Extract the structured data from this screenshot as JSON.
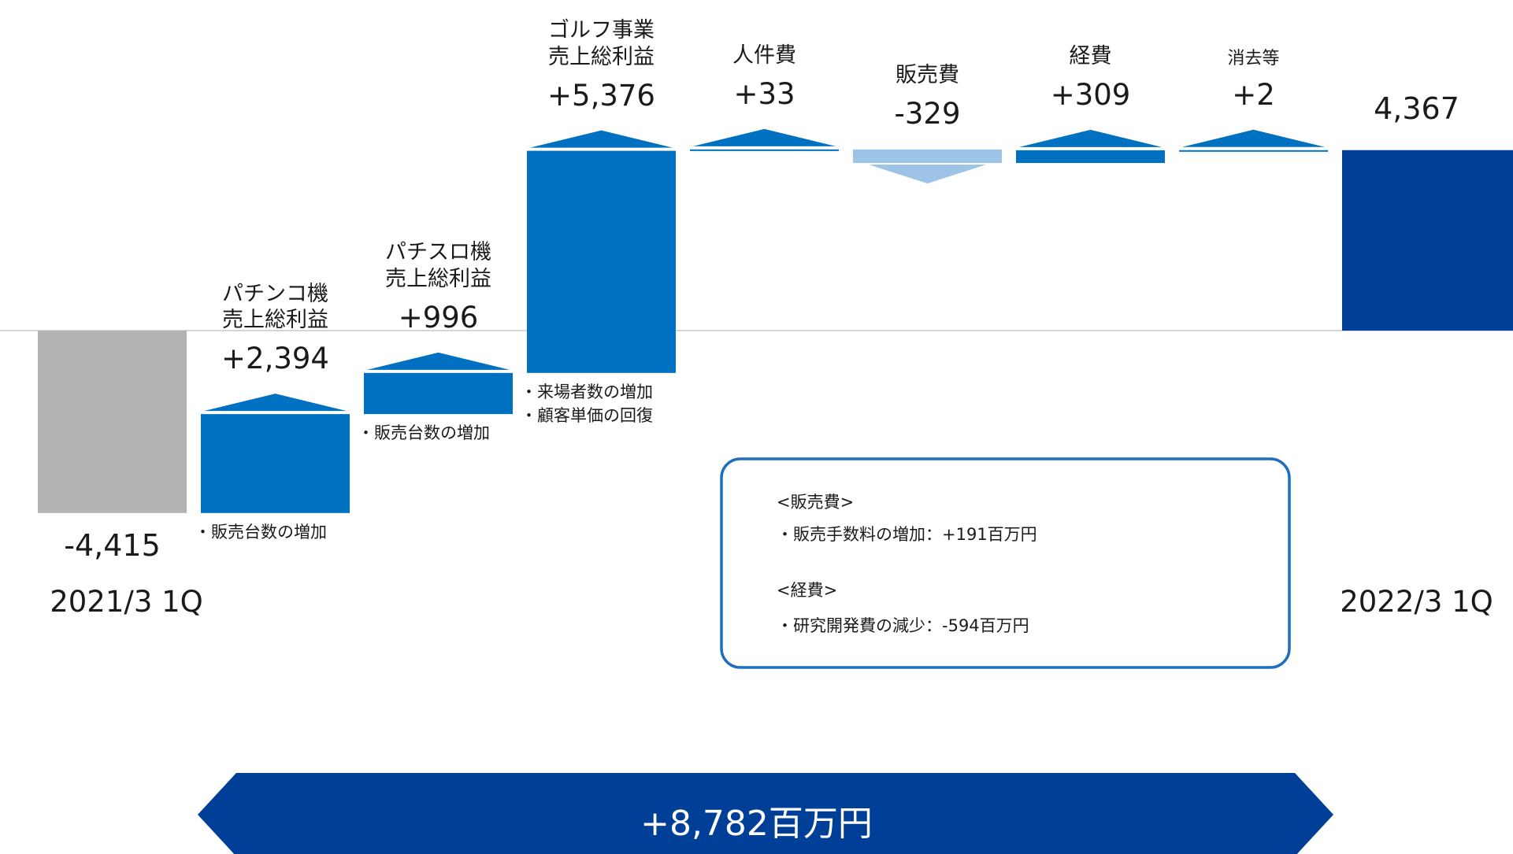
{
  "chart_data": {
    "type": "waterfall",
    "categories": [
      "2021/3 1Q",
      "パチンコ機\n売上総利益",
      "パチスロ機\n売上総利益",
      "ゴルフ事業\n売上総利益",
      "人件費",
      "販売費",
      "経費",
      "消去等",
      "2022/3 1Q"
    ],
    "values": [
      -4415,
      2394,
      996,
      5376,
      33,
      -329,
      309,
      2,
      4367
    ],
    "value_labels": [
      "-4,415",
      "+2,394",
      "+996",
      "+5,376",
      "+33",
      "-329",
      "+309",
      "+2",
      "4,367"
    ],
    "colors": [
      "#b3b3b3",
      "#0070c0",
      "#0070c0",
      "#0070c0",
      "#0070c0",
      "#9dc3e6",
      "#0070c0",
      "#0070c0",
      "#003f97"
    ],
    "notes": [
      null,
      [
        "・販売台数の増加"
      ],
      [
        "・販売台数の増加"
      ],
      [
        "・来場者数の増加",
        "・顧客単価の回復"
      ],
      null,
      null,
      null,
      null,
      null
    ],
    "annotation": [
      "<販売費>",
      "・販売手数料の増加：+191百万円",
      "<経費>",
      "・研究開発費の減少：-594百万円"
    ],
    "total_label": "+8,782百万円"
  }
}
